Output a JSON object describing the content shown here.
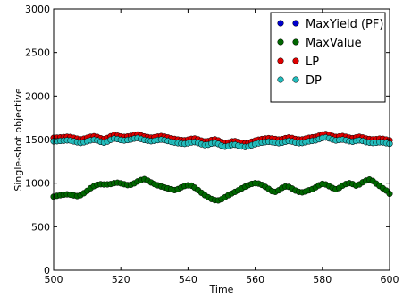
{
  "chart_data": {
    "type": "scatter",
    "xlabel": "Time",
    "ylabel": "Single-shot objective",
    "xlim": [
      500,
      600
    ],
    "ylim": [
      0,
      3000
    ],
    "xticks": [
      500,
      520,
      540,
      560,
      580,
      600
    ],
    "yticks": [
      0,
      500,
      1000,
      1500,
      2000,
      2500,
      3000
    ],
    "grid": false,
    "legend_position": "top-right",
    "x": [
      500,
      501,
      502,
      503,
      504,
      505,
      506,
      507,
      508,
      509,
      510,
      511,
      512,
      513,
      514,
      515,
      516,
      517,
      518,
      519,
      520,
      521,
      522,
      523,
      524,
      525,
      526,
      527,
      528,
      529,
      530,
      531,
      532,
      533,
      534,
      535,
      536,
      537,
      538,
      539,
      540,
      541,
      542,
      543,
      544,
      545,
      546,
      547,
      548,
      549,
      550,
      551,
      552,
      553,
      554,
      555,
      556,
      557,
      558,
      559,
      560,
      561,
      562,
      563,
      564,
      565,
      566,
      567,
      568,
      569,
      570,
      571,
      572,
      573,
      574,
      575,
      576,
      577,
      578,
      579,
      580,
      581,
      582,
      583,
      584,
      585,
      586,
      587,
      588,
      589,
      590,
      591,
      592,
      593,
      594,
      595,
      596,
      597,
      598,
      599,
      600
    ],
    "series": [
      {
        "name": "MaxYield (PF)",
        "color": "#0000cc",
        "values": [
          1480,
          1482,
          1485,
          1488,
          1492,
          1490,
          1480,
          1470,
          1462,
          1470,
          1480,
          1492,
          1498,
          1490,
          1475,
          1465,
          1478,
          1498,
          1512,
          1505,
          1495,
          1490,
          1495,
          1502,
          1512,
          1518,
          1508,
          1495,
          1488,
          1482,
          1486,
          1494,
          1500,
          1494,
          1484,
          1474,
          1467,
          1460,
          1455,
          1452,
          1458,
          1468,
          1472,
          1462,
          1448,
          1438,
          1442,
          1455,
          1462,
          1450,
          1432,
          1420,
          1426,
          1440,
          1442,
          1432,
          1422,
          1416,
          1422,
          1436,
          1448,
          1458,
          1466,
          1472,
          1476,
          1472,
          1466,
          1460,
          1465,
          1476,
          1484,
          1478,
          1466,
          1460,
          1462,
          1470,
          1480,
          1486,
          1492,
          1504,
          1518,
          1524,
          1514,
          1500,
          1490,
          1495,
          1500,
          1492,
          1482,
          1476,
          1484,
          1492,
          1484,
          1472,
          1466,
          1462,
          1464,
          1470,
          1468,
          1460,
          1452
        ]
      },
      {
        "name": "MaxValue",
        "color": "#006600",
        "values": [
          845,
          855,
          862,
          868,
          872,
          868,
          860,
          852,
          862,
          885,
          912,
          942,
          966,
          982,
          988,
          985,
          986,
          990,
          1000,
          1005,
          998,
          988,
          978,
          982,
          998,
          1020,
          1036,
          1046,
          1030,
          1008,
          990,
          975,
          962,
          950,
          940,
          930,
          920,
          932,
          952,
          968,
          975,
          972,
          948,
          920,
          890,
          862,
          838,
          818,
          805,
          802,
          815,
          838,
          862,
          882,
          900,
          918,
          940,
          960,
          978,
          992,
          1000,
          995,
          980,
          958,
          935,
          908,
          900,
          918,
          946,
          962,
          958,
          938,
          915,
          900,
          895,
          904,
          918,
          932,
          952,
          975,
          992,
          985,
          965,
          945,
          930,
          945,
          972,
          990,
          1000,
          990,
          972,
          985,
          1010,
          1030,
          1042,
          1025,
          995,
          968,
          942,
          915,
          878
        ]
      },
      {
        "name": "LP",
        "color": "#dd0000",
        "values": [
          1520,
          1522,
          1525,
          1528,
          1532,
          1530,
          1520,
          1510,
          1502,
          1510,
          1520,
          1532,
          1538,
          1530,
          1515,
          1505,
          1518,
          1538,
          1552,
          1545,
          1535,
          1530,
          1535,
          1542,
          1552,
          1558,
          1548,
          1535,
          1528,
          1522,
          1526,
          1534,
          1540,
          1534,
          1524,
          1514,
          1507,
          1500,
          1495,
          1492,
          1498,
          1508,
          1512,
          1502,
          1488,
          1478,
          1482,
          1495,
          1502,
          1490,
          1472,
          1460,
          1466,
          1480,
          1482,
          1472,
          1462,
          1456,
          1462,
          1476,
          1488,
          1498,
          1506,
          1512,
          1516,
          1512,
          1506,
          1500,
          1505,
          1516,
          1524,
          1518,
          1506,
          1500,
          1502,
          1510,
          1520,
          1526,
          1532,
          1544,
          1558,
          1564,
          1554,
          1540,
          1530,
          1535,
          1540,
          1532,
          1522,
          1516,
          1524,
          1532,
          1524,
          1512,
          1506,
          1502,
          1504,
          1510,
          1508,
          1500,
          1492
        ]
      },
      {
        "name": "DP",
        "color": "#22bbbb",
        "values": [
          1480,
          1482,
          1485,
          1488,
          1492,
          1490,
          1480,
          1470,
          1462,
          1470,
          1480,
          1492,
          1498,
          1490,
          1475,
          1465,
          1478,
          1498,
          1512,
          1505,
          1495,
          1490,
          1495,
          1502,
          1512,
          1518,
          1508,
          1495,
          1488,
          1482,
          1486,
          1494,
          1500,
          1494,
          1484,
          1474,
          1467,
          1460,
          1455,
          1452,
          1458,
          1468,
          1472,
          1462,
          1448,
          1438,
          1442,
          1455,
          1462,
          1450,
          1432,
          1420,
          1426,
          1440,
          1442,
          1432,
          1422,
          1416,
          1422,
          1436,
          1448,
          1458,
          1466,
          1472,
          1476,
          1472,
          1466,
          1460,
          1465,
          1476,
          1484,
          1478,
          1466,
          1460,
          1462,
          1470,
          1480,
          1486,
          1492,
          1504,
          1518,
          1524,
          1514,
          1500,
          1490,
          1495,
          1500,
          1492,
          1482,
          1476,
          1484,
          1492,
          1484,
          1472,
          1466,
          1462,
          1464,
          1470,
          1468,
          1460,
          1452
        ]
      }
    ]
  }
}
